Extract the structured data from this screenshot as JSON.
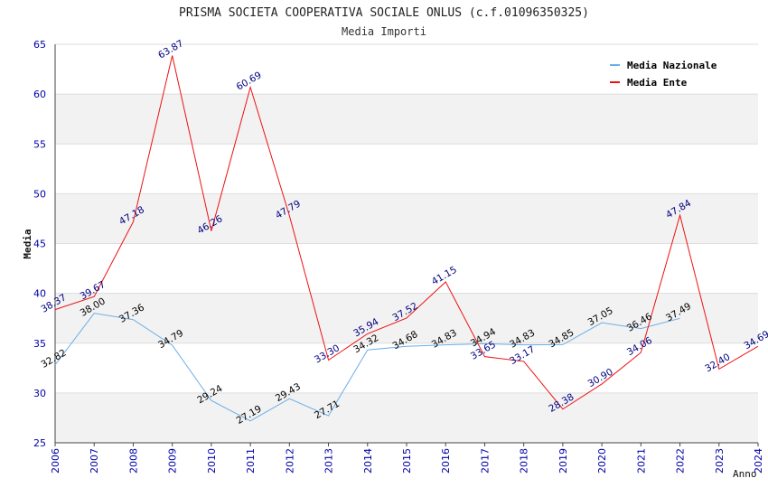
{
  "chart_data": {
    "type": "line",
    "title": "PRISMA SOCIETA COOPERATIVA SOCIALE ONLUS (c.f.01096350325)",
    "subtitle": "Media Importi",
    "xlabel": "Anno",
    "ylabel": "Media",
    "ylim": [
      25,
      65
    ],
    "yticks": [
      "25",
      "30",
      "35",
      "40",
      "45",
      "50",
      "55",
      "60",
      "65"
    ],
    "categories": [
      "2006",
      "2007",
      "2008",
      "2009",
      "2010",
      "2011",
      "2012",
      "2013",
      "2014",
      "2015",
      "2016",
      "2017",
      "2018",
      "2019",
      "2020",
      "2021",
      "2022",
      "2023",
      "2024"
    ],
    "legend_position": "top-right",
    "series": [
      {
        "name": "Media Nazionale",
        "color": "#6aaee8",
        "label_color": "#000000",
        "values": [
          32.82,
          38.0,
          37.36,
          34.79,
          29.24,
          27.19,
          29.43,
          27.71,
          34.32,
          34.68,
          34.83,
          34.94,
          34.83,
          34.85,
          37.05,
          36.46,
          37.49,
          null,
          null
        ],
        "labels": [
          "32.82",
          "38.00",
          "37.36",
          "34.79",
          "29.24",
          "27.19",
          "29.43",
          "27.71",
          "34.32",
          "34.68",
          "34.83",
          "34.94",
          "34.83",
          "34.85",
          "37.05",
          "36.46",
          "37.49",
          null,
          null
        ]
      },
      {
        "name": "Media Ente",
        "color": "#ee1111",
        "label_color": "#000080",
        "values": [
          38.37,
          39.67,
          47.18,
          63.87,
          46.26,
          60.69,
          47.79,
          33.3,
          35.94,
          37.52,
          41.15,
          33.65,
          33.17,
          28.38,
          30.9,
          34.06,
          47.84,
          32.4,
          34.69
        ],
        "labels": [
          "38.37",
          "39.67",
          "47.18",
          "63.87",
          "46.26",
          "60.69",
          "47.79",
          "33.30",
          "35.94",
          "37.52",
          "41.15",
          "33.65",
          "33.17",
          "28.38",
          "30.90",
          "34.06",
          "47.84",
          "32.40",
          "34.69"
        ]
      }
    ]
  }
}
